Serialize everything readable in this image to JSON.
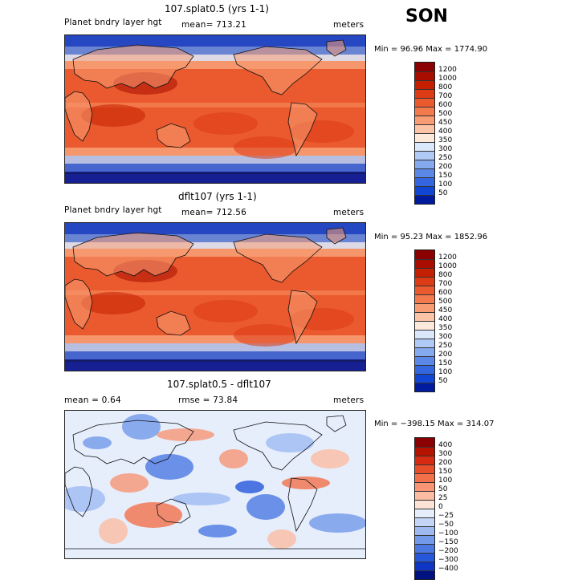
{
  "season": "SON",
  "panels": [
    {
      "title": "107.splat0.5 (yrs 1-1)",
      "left_label": "Planet bndry layer hgt",
      "center_label": "mean= 713.21",
      "right_label": "meters",
      "minmax": "Min =  96.96 Max = 1774.90",
      "levels": [
        "1200",
        "1000",
        "800",
        "700",
        "600",
        "500",
        "450",
        "400",
        "350",
        "300",
        "250",
        "200",
        "150",
        "100",
        "50"
      ],
      "colors": [
        "#8b0000",
        "#a80d00",
        "#c42000",
        "#dd3a16",
        "#ea5a2e",
        "#f37a4c",
        "#f79c73",
        "#fbc4a6",
        "#fde8dc",
        "#dbe8fb",
        "#b0c9f5",
        "#85a9ee",
        "#5b88e6",
        "#3466df",
        "#1145d3",
        "#001a9e"
      ],
      "chart_data": {
        "type": "heatmap",
        "title": "107.splat0.5 (yrs 1-1)",
        "variable": "Planet bndry layer hgt",
        "units": "meters",
        "mean": 713.21,
        "min": 96.96,
        "max": 1774.9,
        "contour_levels": [
          50,
          100,
          150,
          200,
          250,
          300,
          350,
          400,
          450,
          500,
          600,
          700,
          800,
          1000,
          1200
        ]
      }
    },
    {
      "title": "dflt107 (yrs 1-1)",
      "left_label": "Planet bndry layer hgt",
      "center_label": "mean= 712.56",
      "right_label": "meters",
      "minmax": "Min =  95.23 Max = 1852.96",
      "levels": [
        "1200",
        "1000",
        "800",
        "700",
        "600",
        "500",
        "450",
        "400",
        "350",
        "300",
        "250",
        "200",
        "150",
        "100",
        "50"
      ],
      "colors": [
        "#8b0000",
        "#a80d00",
        "#c42000",
        "#dd3a16",
        "#ea5a2e",
        "#f37a4c",
        "#f79c73",
        "#fbc4a6",
        "#fde8dc",
        "#dbe8fb",
        "#b0c9f5",
        "#85a9ee",
        "#5b88e6",
        "#3466df",
        "#1145d3",
        "#001a9e"
      ],
      "chart_data": {
        "type": "heatmap",
        "title": "dflt107 (yrs 1-1)",
        "variable": "Planet bndry layer hgt",
        "units": "meters",
        "mean": 712.56,
        "min": 95.23,
        "max": 1852.96,
        "contour_levels": [
          50,
          100,
          150,
          200,
          250,
          300,
          350,
          400,
          450,
          500,
          600,
          700,
          800,
          1000,
          1200
        ]
      }
    },
    {
      "title": "107.splat0.5 - dflt107",
      "left_label": "mean =    0.64",
      "center_label": "rmse =   73.84",
      "right_label": "meters",
      "minmax": "Min = −398.15 Max = 314.07",
      "levels": [
        "400",
        "300",
        "200",
        "150",
        "100",
        "50",
        "25",
        "0",
        "−25",
        "−50",
        "−100",
        "−150",
        "−200",
        "−300",
        "−400"
      ],
      "colors": [
        "#8b0000",
        "#b51200",
        "#d62b10",
        "#e84d2a",
        "#f2714a",
        "#f89574",
        "#fbbca1",
        "#fde3d6",
        "#e6eefc",
        "#c4d6f7",
        "#9ebaf1",
        "#7399ea",
        "#4b78e2",
        "#2656d9",
        "#0f35c4",
        "#00127f"
      ],
      "chart_data": {
        "type": "heatmap",
        "title": "107.splat0.5 - dflt107",
        "units": "meters",
        "mean": 0.64,
        "rmse": 73.84,
        "min": -398.15,
        "max": 314.07,
        "contour_levels": [
          -400,
          -300,
          -200,
          -150,
          -100,
          -50,
          -25,
          0,
          25,
          50,
          100,
          150,
          200,
          300,
          400
        ]
      }
    }
  ]
}
